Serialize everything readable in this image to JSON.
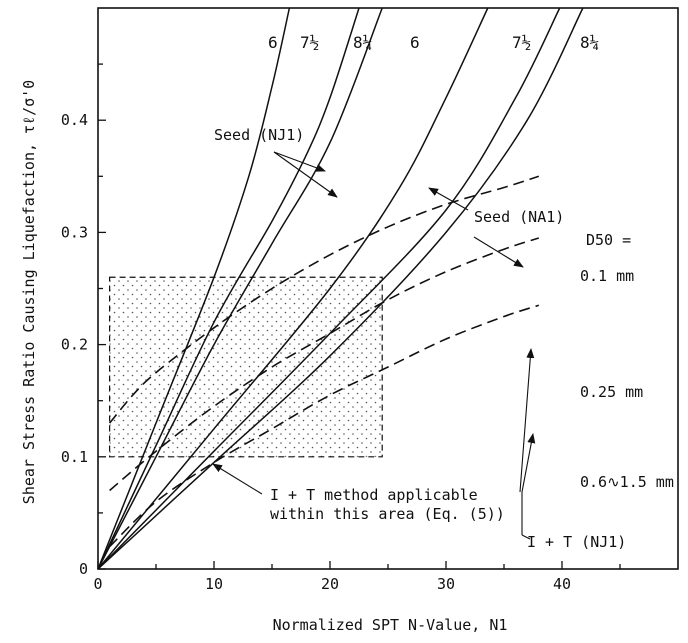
{
  "chart_data": {
    "type": "line",
    "title": "",
    "xlabel": "Normalized SPT N-Value, N1",
    "ylabel": "Shear Stress Ratio Causing Liquefaction, τℓ/σ'0",
    "xlim": [
      0,
      50
    ],
    "ylim": [
      0,
      0.5
    ],
    "xticks": [
      0,
      10,
      20,
      30,
      40
    ],
    "yticks": [
      0,
      0.1,
      0.2,
      0.3,
      0.4
    ],
    "x_tick_labels": [
      "0",
      "10",
      "20",
      "30",
      "40"
    ],
    "y_tick_labels": [
      "0",
      "0.1",
      "0.2",
      "0.3",
      "0.4"
    ],
    "grid": false,
    "series": [
      {
        "name": "Seed (NJ1) 6",
        "style": "solid",
        "x": [
          0,
          5,
          10,
          13,
          15,
          16.5
        ],
        "y": [
          0,
          0.13,
          0.26,
          0.35,
          0.43,
          0.5
        ]
      },
      {
        "name": "Seed (NJ1) 7 1/2",
        "style": "solid",
        "x": [
          0,
          5,
          10,
          15,
          18,
          20,
          22.5
        ],
        "y": [
          0,
          0.11,
          0.22,
          0.31,
          0.37,
          0.42,
          0.5
        ]
      },
      {
        "name": "Seed (NJ1) 8 1/4",
        "style": "solid",
        "x": [
          0,
          5,
          10,
          15,
          20,
          24.5
        ],
        "y": [
          0,
          0.1,
          0.2,
          0.29,
          0.38,
          0.5
        ]
      },
      {
        "name": "Seed (NA1) 6",
        "style": "solid",
        "x": [
          0,
          10,
          20,
          26,
          30,
          33.6
        ],
        "y": [
          0,
          0.125,
          0.25,
          0.34,
          0.42,
          0.5
        ]
      },
      {
        "name": "Seed (NA1) 7 1/2",
        "style": "solid",
        "x": [
          0,
          10,
          20,
          30,
          36,
          39.8
        ],
        "y": [
          0,
          0.105,
          0.21,
          0.32,
          0.42,
          0.5
        ]
      },
      {
        "name": "Seed (NA1) 8 1/4",
        "style": "solid",
        "x": [
          0,
          10,
          20,
          30,
          37,
          41.8
        ],
        "y": [
          0,
          0.095,
          0.19,
          0.3,
          0.4,
          0.5
        ]
      },
      {
        "name": "I + T (NJ1) D50 = 0.1 mm",
        "style": "dashed",
        "x": [
          1,
          3,
          5,
          10,
          15,
          20,
          25,
          30,
          35,
          38
        ],
        "y": [
          0.13,
          0.155,
          0.175,
          0.215,
          0.25,
          0.28,
          0.305,
          0.325,
          0.34,
          0.35
        ]
      },
      {
        "name": "I + T (NJ1) D50 = 0.25 mm",
        "style": "dashed",
        "x": [
          1,
          5,
          10,
          15,
          20,
          25,
          30,
          35,
          38
        ],
        "y": [
          0.07,
          0.105,
          0.145,
          0.18,
          0.21,
          0.24,
          0.265,
          0.285,
          0.295
        ]
      },
      {
        "name": "I + T (NJ1) D50 = 0.6~1.5 mm",
        "style": "dashed",
        "x": [
          1,
          5,
          10,
          15,
          20,
          25,
          30,
          35,
          38
        ],
        "y": [
          0.02,
          0.06,
          0.095,
          0.125,
          0.155,
          0.18,
          0.205,
          0.225,
          0.235
        ]
      }
    ],
    "shaded_region": {
      "x": [
        1,
        24.5
      ],
      "y": [
        0.1,
        0.26
      ],
      "label": "I + T method applicable within this area (Eq. (5))"
    },
    "curve_labels": [
      "6",
      "7½",
      "8¼",
      "6",
      "7½",
      "8¼"
    ],
    "annotations": {
      "seed_nj1": "Seed (NJ1)",
      "seed_na1": "Seed (NA1)",
      "d50_header": "D50 =",
      "d50_values": [
        "0.1 mm",
        "0.25 mm",
        "0.6∿1.5 mm"
      ],
      "it_label": "I + T (NJ1)",
      "area_line1": "I + T method applicable",
      "area_line2": "within this area (Eq. (5))"
    }
  }
}
